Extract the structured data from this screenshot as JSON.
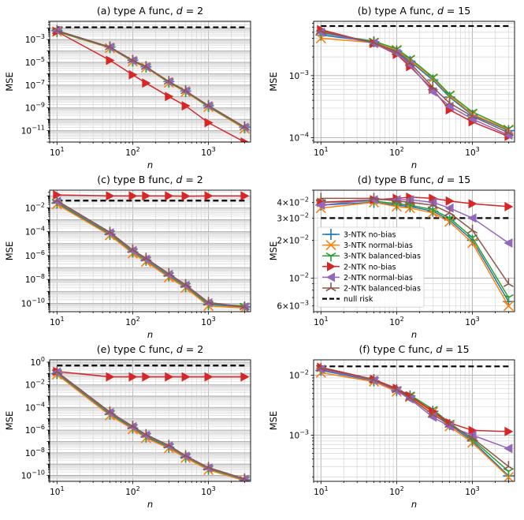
{
  "figure": {
    "legend_panel": 3,
    "legend_position": "center-left",
    "legend": [
      {
        "label": "3-NTK no-bias",
        "color": "#1f77b4",
        "marker": "plus"
      },
      {
        "label": "3-NTK normal-bias",
        "color": "#ff7f0e",
        "marker": "x"
      },
      {
        "label": "3-NTK balanced-bias",
        "color": "#2ca02c",
        "marker": "tri_down"
      },
      {
        "label": "2-NTK no-bias",
        "color": "#d62728",
        "marker": "triangle_right"
      },
      {
        "label": "2-NTK normal-bias",
        "color": "#9467bd",
        "marker": "triangle_left"
      },
      {
        "label": "2-NTK balanced-bias",
        "color": "#8c564b",
        "marker": "tri_up"
      },
      {
        "label": "null risk",
        "color": "#000000",
        "marker": "dashed"
      }
    ]
  },
  "chart_data": [
    {
      "type": "line",
      "xscale": "log",
      "yscale": "log",
      "title": "(a) type A func, d = 2",
      "xlabel": "n",
      "ylabel": "MSE",
      "xlim": [
        8,
        3600
      ],
      "ylim": [
        1e-12,
        0.04
      ],
      "xticks": [
        {
          "v": 10,
          "e": "1"
        },
        {
          "v": 100,
          "e": "2"
        },
        {
          "v": 1000,
          "e": "3"
        }
      ],
      "yticks": [
        {
          "v": 0.001,
          "e": "−3"
        },
        {
          "v": 1e-05,
          "e": "−5"
        },
        {
          "v": 1e-07,
          "e": "−7"
        },
        {
          "v": 1e-09,
          "e": "−9"
        },
        {
          "v": 1e-11,
          "e": "−11"
        }
      ],
      "null_risk": 0.012,
      "x": [
        10,
        50,
        100,
        150,
        300,
        500,
        1000,
        3000
      ],
      "series": [
        {
          "name": "3-NTK no-bias",
          "values": [
            0.006,
            0.00022,
            1.5e-05,
            4e-06,
            2e-07,
            3e-08,
            1.5e-09,
            2e-11
          ]
        },
        {
          "name": "3-NTK normal-bias",
          "values": [
            0.005,
            0.00018,
            1.2e-05,
            3.5e-06,
            1.6e-07,
            2.5e-08,
            1.2e-09,
            1.5e-11
          ]
        },
        {
          "name": "3-NTK balanced-bias",
          "values": [
            0.005,
            0.0002,
            1.3e-05,
            3.8e-06,
            1.8e-07,
            2.8e-08,
            1.3e-09,
            1.8e-11
          ]
        },
        {
          "name": "2-NTK no-bias",
          "values": [
            0.005,
            1.5e-05,
            8e-07,
            1.5e-07,
            1e-08,
            1.5e-09,
            5e-11,
            1e-12
          ]
        },
        {
          "name": "2-NTK normal-bias",
          "values": [
            0.006,
            0.00021,
            1.4e-05,
            4e-06,
            2e-07,
            3e-08,
            1.5e-09,
            2e-11
          ]
        },
        {
          "name": "2-NTK balanced-bias",
          "values": [
            0.006,
            0.00022,
            1.5e-05,
            4.2e-06,
            2.1e-07,
            3.1e-08,
            1.6e-09,
            2.1e-11
          ]
        }
      ]
    },
    {
      "type": "line",
      "xscale": "log",
      "yscale": "log",
      "title": "(b) type A func, d = 15",
      "xlabel": "n",
      "ylabel": "MSE",
      "xlim": [
        8,
        3600
      ],
      "ylim": [
        8.5e-05,
        0.0075
      ],
      "xticks": [
        {
          "v": 10,
          "e": "1"
        },
        {
          "v": 100,
          "e": "2"
        },
        {
          "v": 1000,
          "e": "3"
        }
      ],
      "yticks": [
        {
          "v": 0.001,
          "e": "−3"
        },
        {
          "v": 0.0001,
          "e": "−4"
        }
      ],
      "null_risk": 0.0063,
      "x": [
        10,
        50,
        100,
        150,
        300,
        500,
        1000,
        3000
      ],
      "series": [
        {
          "name": "3-NTK no-bias",
          "values": [
            0.0045,
            0.0035,
            0.0025,
            0.0017,
            0.00085,
            0.00045,
            0.00023,
            0.00013
          ]
        },
        {
          "name": "3-NTK normal-bias",
          "values": [
            0.004,
            0.0034,
            0.0026,
            0.0018,
            0.0009,
            0.00048,
            0.00024,
            0.000135
          ]
        },
        {
          "name": "3-NTK balanced-bias",
          "values": [
            0.0048,
            0.0036,
            0.0027,
            0.0019,
            0.00095,
            0.0005,
            0.00026,
            0.00014
          ]
        },
        {
          "name": "2-NTK no-bias",
          "values": [
            0.0055,
            0.0033,
            0.0022,
            0.0014,
            0.0006,
            0.00028,
            0.00018,
            0.000105
          ]
        },
        {
          "name": "2-NTK normal-bias",
          "values": [
            0.005,
            0.0033,
            0.0023,
            0.0015,
            0.00055,
            0.00032,
            0.0002,
            0.00011
          ]
        },
        {
          "name": "2-NTK balanced-bias",
          "values": [
            0.0052,
            0.0034,
            0.0024,
            0.0016,
            0.00065,
            0.00036,
            0.00022,
            0.00012
          ]
        }
      ]
    },
    {
      "type": "line",
      "xscale": "log",
      "yscale": "log",
      "title": "(c) type B func, d = 2",
      "xlabel": "n",
      "ylabel": "MSE",
      "xlim": [
        8,
        3600
      ],
      "ylim": [
        2e-11,
        0.3
      ],
      "xticks": [
        {
          "v": 10,
          "e": "1"
        },
        {
          "v": 100,
          "e": "2"
        },
        {
          "v": 1000,
          "e": "3"
        }
      ],
      "yticks": [
        {
          "v": 0.01,
          "e": "−2"
        },
        {
          "v": 0.0001,
          "e": "−4"
        },
        {
          "v": 1e-06,
          "e": "−6"
        },
        {
          "v": 1e-08,
          "e": "−8"
        },
        {
          "v": 1e-10,
          "e": "−10"
        }
      ],
      "null_risk": 0.04,
      "x": [
        10,
        50,
        100,
        150,
        300,
        500,
        1000,
        3000
      ],
      "series": [
        {
          "name": "3-NTK no-bias",
          "values": [
            0.025,
            6e-05,
            2e-06,
            4e-07,
            2e-08,
            2.5e-09,
            8e-11,
            5e-11
          ]
        },
        {
          "name": "3-NTK normal-bias",
          "values": [
            0.02,
            5e-05,
            1.5e-06,
            3e-07,
            1.5e-08,
            2e-09,
            6e-11,
            4e-11
          ]
        },
        {
          "name": "3-NTK balanced-bias",
          "values": [
            0.03,
            7e-05,
            2.2e-06,
            4.5e-07,
            2.2e-08,
            2.8e-09,
            9e-11,
            6e-11
          ]
        },
        {
          "name": "2-NTK no-bias",
          "values": [
            0.12,
            0.1,
            0.1,
            0.1,
            0.1,
            0.095,
            0.1,
            0.1
          ]
        },
        {
          "name": "2-NTK normal-bias",
          "values": [
            0.035,
            8e-05,
            2.6e-06,
            5e-07,
            2.6e-08,
            3.2e-09,
            1.1e-10,
            5e-11
          ]
        },
        {
          "name": "2-NTK balanced-bias",
          "values": [
            0.04,
            9e-05,
            3e-06,
            6e-07,
            3e-08,
            3.6e-09,
            1.2e-10,
            5e-11
          ]
        }
      ]
    },
    {
      "type": "line",
      "xscale": "log",
      "yscale": "log",
      "title": "(d) type B func, d = 15",
      "xlabel": "n",
      "ylabel": "MSE",
      "xlim": [
        8,
        3600
      ],
      "ylim": [
        0.0054,
        0.05
      ],
      "xticks": [
        {
          "v": 10,
          "e": "1"
        },
        {
          "v": 100,
          "e": "2"
        },
        {
          "v": 1000,
          "e": "3"
        }
      ],
      "yticks": [
        {
          "v": 0.04,
          "m": "4",
          "e": "−2"
        },
        {
          "v": 0.03,
          "m": "3",
          "e": "−2"
        },
        {
          "v": 0.02,
          "m": "2",
          "e": "−2"
        },
        {
          "v": 0.01,
          "m": "",
          "e": "−2"
        },
        {
          "v": 0.006,
          "m": "6",
          "e": "−3"
        }
      ],
      "null_risk": 0.03,
      "x": [
        10,
        50,
        100,
        150,
        300,
        500,
        1000,
        3000
      ],
      "series": [
        {
          "name": "3-NTK no-bias",
          "values": [
            0.038,
            0.04,
            0.038,
            0.037,
            0.034,
            0.029,
            0.02,
            0.0065
          ]
        },
        {
          "name": "3-NTK normal-bias",
          "values": [
            0.036,
            0.04,
            0.037,
            0.036,
            0.033,
            0.028,
            0.019,
            0.006
          ]
        },
        {
          "name": "3-NTK balanced-bias",
          "values": [
            0.04,
            0.041,
            0.039,
            0.038,
            0.035,
            0.03,
            0.021,
            0.007
          ]
        },
        {
          "name": "2-NTK no-bias",
          "values": [
            0.04,
            0.042,
            0.043,
            0.044,
            0.043,
            0.041,
            0.039,
            0.037
          ]
        },
        {
          "name": "2-NTK normal-bias",
          "values": [
            0.038,
            0.042,
            0.042,
            0.042,
            0.04,
            0.036,
            0.03,
            0.019
          ]
        },
        {
          "name": "2-NTK balanced-bias",
          "values": [
            0.043,
            0.043,
            0.041,
            0.04,
            0.038,
            0.033,
            0.024,
            0.009
          ]
        }
      ]
    },
    {
      "type": "line",
      "xscale": "log",
      "yscale": "log",
      "title": "(e) type C func, d = 2",
      "xlabel": "n",
      "ylabel": "MSE",
      "xlim": [
        8,
        3600
      ],
      "ylim": [
        3e-11,
        1.6
      ],
      "xticks": [
        {
          "v": 10,
          "e": "1"
        },
        {
          "v": 100,
          "e": "2"
        },
        {
          "v": 1000,
          "e": "3"
        }
      ],
      "yticks": [
        {
          "v": 1,
          "e": "0"
        },
        {
          "v": 0.01,
          "e": "−2"
        },
        {
          "v": 0.0001,
          "e": "−4"
        },
        {
          "v": 1e-06,
          "e": "−6"
        },
        {
          "v": 1e-08,
          "e": "−8"
        },
        {
          "v": 1e-10,
          "e": "−10"
        }
      ],
      "null_risk": 0.5,
      "x": [
        10,
        50,
        100,
        150,
        300,
        500,
        1000,
        3000
      ],
      "series": [
        {
          "name": "3-NTK no-bias",
          "values": [
            0.1,
            2.5e-05,
            1.5e-06,
            2.5e-07,
            3e-08,
            4e-09,
            3.5e-10,
            4e-11
          ]
        },
        {
          "name": "3-NTK normal-bias",
          "values": [
            0.08,
            2e-05,
            1.2e-06,
            2e-07,
            2.5e-08,
            3.5e-09,
            3e-10,
            3.5e-11
          ]
        },
        {
          "name": "3-NTK balanced-bias",
          "values": [
            0.12,
            3e-05,
            1.8e-06,
            3e-07,
            3.5e-08,
            4.5e-09,
            4e-10,
            4e-11
          ]
        },
        {
          "name": "2-NTK no-bias",
          "values": [
            0.15,
            0.05,
            0.05,
            0.05,
            0.05,
            0.05,
            0.05,
            0.05
          ]
        },
        {
          "name": "2-NTK normal-bias",
          "values": [
            0.13,
            3.5e-05,
            2e-06,
            3.5e-07,
            4e-08,
            5e-09,
            4.5e-10,
            4.5e-11
          ]
        },
        {
          "name": "2-NTK balanced-bias",
          "values": [
            0.14,
            4e-05,
            2.2e-06,
            4e-07,
            4.5e-08,
            5.5e-09,
            5e-10,
            5e-11
          ]
        }
      ]
    },
    {
      "type": "line",
      "xscale": "log",
      "yscale": "log",
      "title": "(f) type C func, d = 15",
      "xlabel": "n",
      "ylabel": "MSE",
      "xlim": [
        8,
        3600
      ],
      "ylim": [
        0.00017,
        0.018
      ],
      "xticks": [
        {
          "v": 10,
          "e": "1"
        },
        {
          "v": 100,
          "e": "2"
        },
        {
          "v": 1000,
          "e": "3"
        }
      ],
      "yticks": [
        {
          "v": 0.01,
          "e": "−2"
        },
        {
          "v": 0.001,
          "e": "−3"
        }
      ],
      "null_risk": 0.014,
      "x": [
        10,
        50,
        100,
        150,
        300,
        500,
        1000,
        3000
      ],
      "series": [
        {
          "name": "3-NTK no-bias",
          "values": [
            0.012,
            0.008,
            0.0055,
            0.0045,
            0.0025,
            0.0015,
            0.0008,
            0.00021
          ]
        },
        {
          "name": "3-NTK normal-bias",
          "values": [
            0.011,
            0.0078,
            0.0053,
            0.0043,
            0.0024,
            0.0014,
            0.00075,
            0.0002
          ]
        },
        {
          "name": "3-NTK balanced-bias",
          "values": [
            0.013,
            0.0082,
            0.0058,
            0.0047,
            0.0027,
            0.0016,
            0.00085,
            0.00025
          ]
        },
        {
          "name": "2-NTK no-bias",
          "values": [
            0.0135,
            0.0085,
            0.006,
            0.0045,
            0.0025,
            0.0016,
            0.0012,
            0.00115
          ]
        },
        {
          "name": "2-NTK normal-bias",
          "values": [
            0.0125,
            0.0082,
            0.0055,
            0.004,
            0.002,
            0.0014,
            0.001,
            0.0006
          ]
        },
        {
          "name": "2-NTK balanced-bias",
          "values": [
            0.013,
            0.0084,
            0.0057,
            0.0042,
            0.0022,
            0.0015,
            0.0009,
            0.0003
          ]
        }
      ]
    }
  ]
}
